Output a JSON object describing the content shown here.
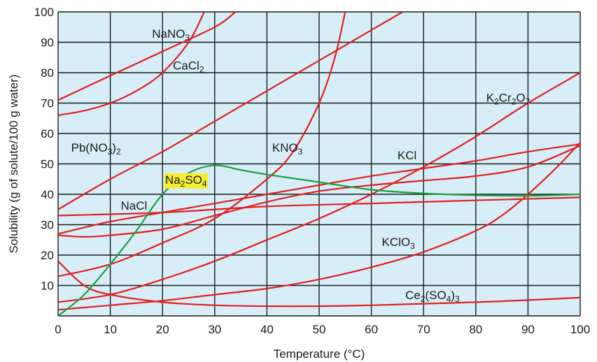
{
  "chart_data": {
    "type": "line",
    "title": "",
    "xlabel": "Temperature (°C)",
    "ylabel": "Solubility (g of solute/100 g water)",
    "xlim": [
      0,
      100
    ],
    "ylim": [
      0,
      100
    ],
    "x_ticks": [
      0,
      10,
      20,
      30,
      40,
      50,
      60,
      70,
      80,
      90,
      100
    ],
    "y_ticks": [
      10,
      20,
      30,
      40,
      50,
      60,
      70,
      80,
      90,
      100
    ],
    "grid": true,
    "background_color": "#d7eef8",
    "grid_color": "#1a1a1a",
    "series": [
      {
        "id": "nano3",
        "label": {
          "base": "NaNO",
          "sub": "3",
          "tail": ""
        },
        "color": "#e02020",
        "points": [
          [
            0,
            71
          ],
          [
            10,
            79
          ],
          [
            20,
            87
          ],
          [
            30,
            95
          ],
          [
            34,
            100
          ]
        ]
      },
      {
        "id": "cacl2",
        "label": {
          "base": "CaCl",
          "sub": "2",
          "tail": ""
        },
        "color": "#e02020",
        "points": [
          [
            0,
            66
          ],
          [
            5,
            67.5
          ],
          [
            10,
            70
          ],
          [
            15,
            74
          ],
          [
            20,
            80
          ],
          [
            25,
            90
          ],
          [
            28,
            100
          ]
        ]
      },
      {
        "id": "pbno32",
        "label": {
          "base": "Pb(NO",
          "sub": "3",
          "tail": ")2"
        },
        "color": "#e02020",
        "points": [
          [
            0,
            35
          ],
          [
            10,
            45
          ],
          [
            20,
            54
          ],
          [
            30,
            64
          ],
          [
            40,
            74
          ],
          [
            50,
            84
          ],
          [
            60,
            94
          ],
          [
            66,
            100
          ]
        ]
      },
      {
        "id": "kno3",
        "label": {
          "base": "KNO",
          "sub": "3",
          "tail": ""
        },
        "color": "#e02020",
        "points": [
          [
            0,
            13
          ],
          [
            10,
            17
          ],
          [
            20,
            24
          ],
          [
            30,
            32
          ],
          [
            40,
            45
          ],
          [
            45,
            54
          ],
          [
            50,
            70
          ],
          [
            53,
            85
          ],
          [
            55,
            100
          ]
        ]
      },
      {
        "id": "kcl",
        "label": {
          "base": "KCl",
          "sub": "",
          "tail": ""
        },
        "color": "#e02020",
        "points": [
          [
            0,
            27
          ],
          [
            10,
            31
          ],
          [
            20,
            34
          ],
          [
            30,
            37
          ],
          [
            40,
            40
          ],
          [
            50,
            43
          ],
          [
            60,
            46
          ],
          [
            70,
            48.5
          ],
          [
            80,
            51
          ],
          [
            90,
            54
          ],
          [
            100,
            56.5
          ]
        ]
      },
      {
        "id": "k2cr2o7",
        "label": {
          "base": "K2Cr2O7",
          "sub": "",
          "tail": ""
        },
        "color": "#e02020",
        "points": [
          [
            0,
            4.5
          ],
          [
            10,
            7
          ],
          [
            20,
            12
          ],
          [
            30,
            18
          ],
          [
            40,
            25
          ],
          [
            50,
            32
          ],
          [
            60,
            40
          ],
          [
            70,
            49
          ],
          [
            80,
            59
          ],
          [
            90,
            70
          ],
          [
            100,
            80
          ]
        ]
      },
      {
        "id": "nacl",
        "label": {
          "base": "NaCl",
          "sub": "",
          "tail": ""
        },
        "color": "#e02020",
        "points": [
          [
            0,
            33
          ],
          [
            20,
            34
          ],
          [
            40,
            36
          ],
          [
            60,
            37
          ],
          [
            80,
            38
          ],
          [
            100,
            39
          ]
        ]
      },
      {
        "id": "kclo3",
        "label": {
          "base": "KClO",
          "sub": "3",
          "tail": ""
        },
        "color": "#e02020",
        "points": [
          [
            0,
            26.5
          ],
          [
            5,
            26
          ],
          [
            10,
            26.5
          ],
          [
            20,
            28.5
          ],
          [
            30,
            33
          ],
          [
            40,
            37.5
          ],
          [
            50,
            41
          ],
          [
            60,
            43
          ],
          [
            70,
            44.5
          ],
          [
            80,
            46
          ],
          [
            90,
            49
          ],
          [
            100,
            56
          ]
        ]
      },
      {
        "id": "ce2so43",
        "label": {
          "base": "Ce2(SO4)3",
          "sub": "",
          "tail": ""
        },
        "color": "#e02020",
        "points": [
          [
            0,
            18
          ],
          [
            5,
            10
          ],
          [
            10,
            7
          ],
          [
            20,
            4.5
          ],
          [
            30,
            3.5
          ],
          [
            40,
            3.2
          ],
          [
            50,
            3.2
          ],
          [
            60,
            3.5
          ],
          [
            70,
            4
          ],
          [
            80,
            4.5
          ],
          [
            90,
            5.2
          ],
          [
            100,
            6
          ]
        ]
      },
      {
        "id": "kclo3b",
        "label": {
          "base": "",
          "sub": "",
          "tail": ""
        },
        "color": "#e02020",
        "points": [
          [
            0,
            2
          ],
          [
            10,
            3.5
          ],
          [
            20,
            5
          ],
          [
            30,
            7
          ],
          [
            40,
            9
          ],
          [
            50,
            12
          ],
          [
            60,
            16
          ],
          [
            70,
            21
          ],
          [
            80,
            28
          ],
          [
            85,
            33
          ],
          [
            90,
            40
          ],
          [
            95,
            48
          ],
          [
            100,
            57
          ]
        ]
      },
      {
        "id": "na2so4",
        "label": {
          "base": "Na2SO4",
          "sub": "",
          "tail": ""
        },
        "color": "#1aa040",
        "points": [
          [
            0,
            0
          ],
          [
            5,
            7
          ],
          [
            10,
            17
          ],
          [
            15,
            28
          ],
          [
            20,
            40
          ],
          [
            25,
            47
          ],
          [
            30,
            49.5
          ],
          [
            35,
            48
          ],
          [
            40,
            46.5
          ],
          [
            50,
            44
          ],
          [
            60,
            41.5
          ],
          [
            70,
            40.3
          ],
          [
            80,
            39.7
          ],
          [
            90,
            39.5
          ],
          [
            100,
            40
          ]
        ]
      }
    ],
    "labels": [
      {
        "id": "nano3",
        "x": 18,
        "y": 91.5,
        "parts": [
          [
            "NaNO",
            ""
          ],
          [
            "3",
            "sub"
          ]
        ]
      },
      {
        "id": "cacl2",
        "x": 22,
        "y": 81,
        "parts": [
          [
            "CaCl",
            ""
          ],
          [
            "2",
            "sub"
          ]
        ]
      },
      {
        "id": "pbno32",
        "x": 2.5,
        "y": 54,
        "parts": [
          [
            "Pb(NO",
            ""
          ],
          [
            "3",
            "sub"
          ],
          [
            ")",
            ""
          ],
          [
            "2",
            "sub"
          ]
        ]
      },
      {
        "id": "kno3",
        "x": 41,
        "y": 54,
        "parts": [
          [
            "KNO",
            ""
          ],
          [
            "3",
            "sub"
          ]
        ]
      },
      {
        "id": "kcl",
        "x": 65,
        "y": 51.5,
        "parts": [
          [
            "KCl",
            ""
          ]
        ]
      },
      {
        "id": "k2cr2o7",
        "x": 82,
        "y": 70.5,
        "parts": [
          [
            "K",
            ""
          ],
          [
            "2",
            "sub"
          ],
          [
            "Cr",
            ""
          ],
          [
            "2",
            "sub"
          ],
          [
            "O",
            ""
          ],
          [
            "7",
            "sub"
          ]
        ]
      },
      {
        "id": "na2so4",
        "x": 20.5,
        "y": 43.5,
        "parts": [
          [
            "Na",
            ""
          ],
          [
            "2",
            "sub"
          ],
          [
            "SO",
            ""
          ],
          [
            "4",
            "sub"
          ]
        ],
        "highlight": "#f5ee30"
      },
      {
        "id": "nacl",
        "x": 12,
        "y": 35,
        "parts": [
          [
            "NaCl",
            ""
          ]
        ]
      },
      {
        "id": "kclo3",
        "x": 62,
        "y": 23,
        "parts": [
          [
            "KClO",
            ""
          ],
          [
            "3",
            "sub"
          ]
        ]
      },
      {
        "id": "ce2so43",
        "x": 66.5,
        "y": 5.5,
        "parts": [
          [
            "Ce",
            ""
          ],
          [
            "2",
            "sub"
          ],
          [
            "(SO",
            ""
          ],
          [
            "4",
            "sub"
          ],
          [
            ")",
            ""
          ],
          [
            "3",
            "sub"
          ]
        ]
      }
    ]
  }
}
